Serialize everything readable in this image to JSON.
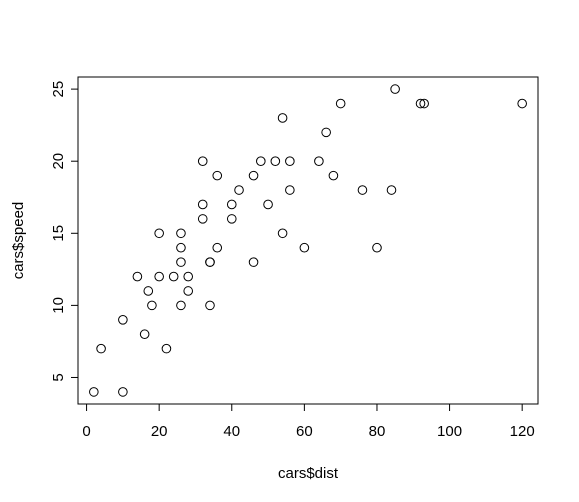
{
  "chart_data": {
    "type": "scatter",
    "title": "",
    "xlabel": "cars$dist",
    "ylabel": "cars$speed",
    "xlim": [
      -2.36,
      124.36
    ],
    "ylim": [
      3.16,
      25.84
    ],
    "x_ticks": [
      0,
      20,
      40,
      60,
      80,
      100,
      120
    ],
    "y_ticks": [
      5,
      10,
      15,
      20,
      25
    ],
    "grid": false,
    "marker": "open-circle",
    "colors": {
      "point_stroke": "#000000",
      "axis": "#000000",
      "background": "#ffffff"
    },
    "points": [
      {
        "x": 2,
        "y": 4
      },
      {
        "x": 10,
        "y": 4
      },
      {
        "x": 4,
        "y": 7
      },
      {
        "x": 22,
        "y": 7
      },
      {
        "x": 16,
        "y": 8
      },
      {
        "x": 10,
        "y": 9
      },
      {
        "x": 18,
        "y": 10
      },
      {
        "x": 26,
        "y": 10
      },
      {
        "x": 34,
        "y": 10
      },
      {
        "x": 17,
        "y": 11
      },
      {
        "x": 28,
        "y": 11
      },
      {
        "x": 14,
        "y": 12
      },
      {
        "x": 20,
        "y": 12
      },
      {
        "x": 24,
        "y": 12
      },
      {
        "x": 28,
        "y": 12
      },
      {
        "x": 26,
        "y": 13
      },
      {
        "x": 34,
        "y": 13
      },
      {
        "x": 34,
        "y": 13
      },
      {
        "x": 46,
        "y": 13
      },
      {
        "x": 26,
        "y": 14
      },
      {
        "x": 36,
        "y": 14
      },
      {
        "x": 60,
        "y": 14
      },
      {
        "x": 80,
        "y": 14
      },
      {
        "x": 20,
        "y": 15
      },
      {
        "x": 26,
        "y": 15
      },
      {
        "x": 54,
        "y": 15
      },
      {
        "x": 32,
        "y": 16
      },
      {
        "x": 40,
        "y": 16
      },
      {
        "x": 32,
        "y": 17
      },
      {
        "x": 40,
        "y": 17
      },
      {
        "x": 50,
        "y": 17
      },
      {
        "x": 42,
        "y": 18
      },
      {
        "x": 56,
        "y": 18
      },
      {
        "x": 76,
        "y": 18
      },
      {
        "x": 84,
        "y": 18
      },
      {
        "x": 36,
        "y": 19
      },
      {
        "x": 46,
        "y": 19
      },
      {
        "x": 68,
        "y": 19
      },
      {
        "x": 32,
        "y": 20
      },
      {
        "x": 48,
        "y": 20
      },
      {
        "x": 52,
        "y": 20
      },
      {
        "x": 56,
        "y": 20
      },
      {
        "x": 64,
        "y": 20
      },
      {
        "x": 66,
        "y": 22
      },
      {
        "x": 54,
        "y": 23
      },
      {
        "x": 70,
        "y": 24
      },
      {
        "x": 92,
        "y": 24
      },
      {
        "x": 93,
        "y": 24
      },
      {
        "x": 120,
        "y": 24
      },
      {
        "x": 85,
        "y": 25
      }
    ]
  }
}
